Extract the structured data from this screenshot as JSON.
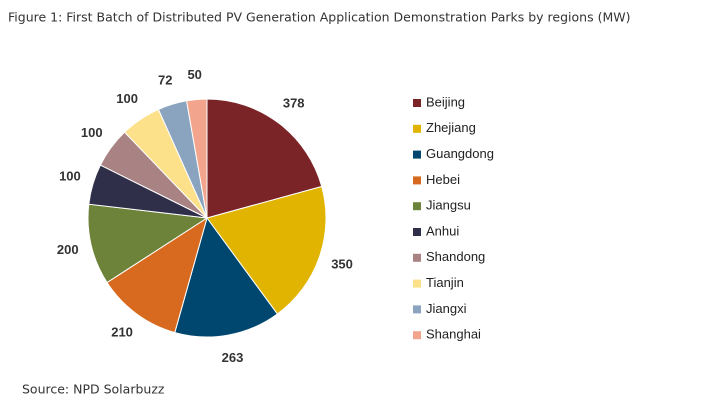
{
  "chart_data": {
    "type": "pie",
    "title": "Figure 1: First Batch of Distributed PV Generation Application Demonstration Parks by regions (MW)",
    "source": "Source: NPD Solarbuzz",
    "categories": [
      "Beijing",
      "Zhejiang",
      "Guangdong",
      "Hebei",
      "Jiangsu",
      "Anhui",
      "Shandong",
      "Tianjin",
      "Jiangxi",
      "Shanghai"
    ],
    "values": [
      378,
      350,
      263,
      210,
      200,
      100,
      100,
      100,
      72,
      50
    ],
    "colors": [
      "#7b2427",
      "#e0b400",
      "#00476f",
      "#d86a1f",
      "#6e833a",
      "#2f2f4a",
      "#a98384",
      "#fce08a",
      "#8aa4c0",
      "#f2a58c"
    ],
    "legend": "right"
  }
}
